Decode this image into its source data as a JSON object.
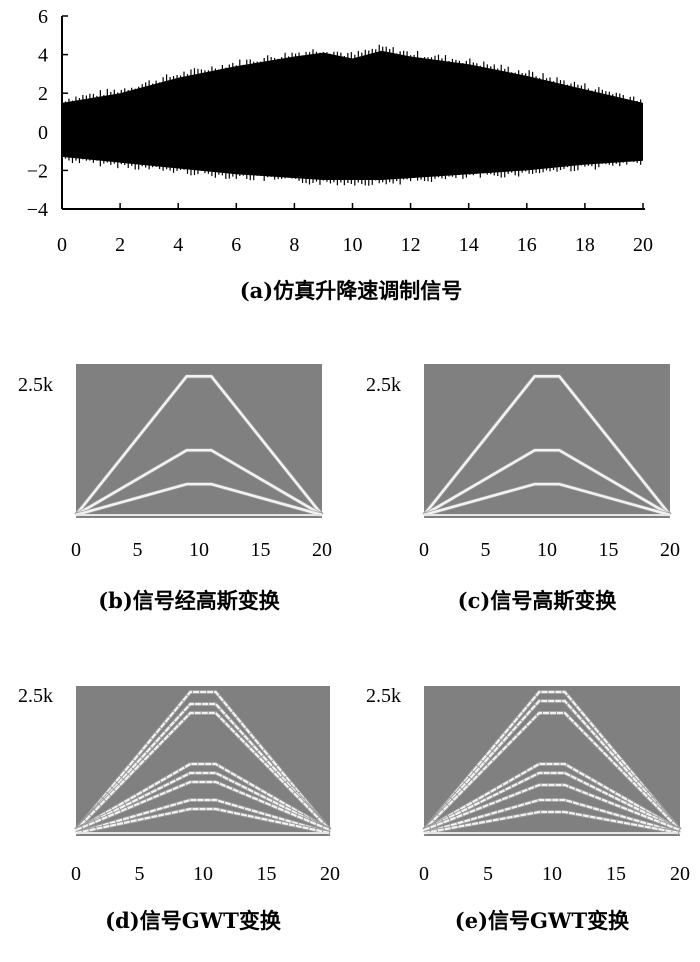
{
  "chart_data": [
    {
      "id": "a",
      "type": "area",
      "caption": "(a)仿真升降速调制信号",
      "xlim": [
        0,
        20
      ],
      "ylim": [
        -4,
        6
      ],
      "xticks": [
        "0",
        "2",
        "4",
        "6",
        "8",
        "10",
        "12",
        "14",
        "16",
        "18",
        "20"
      ],
      "yticks": [
        "6",
        "4",
        "2",
        "0",
        "−2",
        "−4"
      ],
      "series": [
        {
          "x": [
            0,
            2,
            4,
            6,
            8,
            9,
            10,
            11,
            12,
            14,
            16,
            18,
            20
          ],
          "upper": [
            1.5,
            2.0,
            2.8,
            3.4,
            3.9,
            4.1,
            3.8,
            4.2,
            3.9,
            3.5,
            2.9,
            2.2,
            1.5
          ],
          "lower": [
            -1.3,
            -1.6,
            -1.9,
            -2.2,
            -2.4,
            -2.5,
            -2.5,
            -2.5,
            -2.4,
            -2.2,
            -2.0,
            -1.7,
            -1.5
          ]
        }
      ]
    },
    {
      "id": "b",
      "type": "heatmap",
      "caption": "(b)信号经高斯变换",
      "ylabel_top": "2.5k",
      "xticks": [
        "0",
        "5",
        "10",
        "15",
        "20"
      ],
      "xlim": [
        0,
        20
      ],
      "ylim": [
        0,
        2.5
      ],
      "ridges": [
        {
          "x": [
            0,
            9,
            11,
            20
          ],
          "y": [
            0.05,
            2.3,
            2.3,
            0.05
          ]
        },
        {
          "x": [
            0,
            9,
            11,
            20
          ],
          "y": [
            0.05,
            1.1,
            1.1,
            0.05
          ]
        },
        {
          "x": [
            0,
            9,
            11,
            20
          ],
          "y": [
            0.05,
            0.55,
            0.55,
            0.05
          ]
        }
      ]
    },
    {
      "id": "c",
      "type": "heatmap",
      "caption": "(c)信号高斯变换",
      "ylabel_top": "2.5k",
      "xticks": [
        "0",
        "5",
        "10",
        "15",
        "20"
      ],
      "xlim": [
        0,
        20
      ],
      "ylim": [
        0,
        2.5
      ],
      "ridges": [
        {
          "x": [
            0,
            9,
            11,
            20
          ],
          "y": [
            0.05,
            2.3,
            2.3,
            0.05
          ]
        },
        {
          "x": [
            0,
            9,
            11,
            20
          ],
          "y": [
            0.05,
            1.1,
            1.1,
            0.05
          ]
        },
        {
          "x": [
            0,
            9,
            11,
            20
          ],
          "y": [
            0.05,
            0.55,
            0.55,
            0.05
          ]
        }
      ]
    },
    {
      "id": "d",
      "type": "heatmap",
      "caption": "(d)信号GWT变换",
      "ylabel_top": "2.5k",
      "xticks": [
        "0",
        "5",
        "10",
        "15",
        "20"
      ],
      "xlim": [
        0,
        20
      ],
      "ylim": [
        0,
        2.5
      ],
      "ridges": [
        {
          "x": [
            0,
            9,
            11,
            20
          ],
          "y": [
            0.1,
            2.4,
            2.4,
            0.1
          ]
        },
        {
          "x": [
            0,
            9,
            11,
            20
          ],
          "y": [
            0.1,
            2.2,
            2.2,
            0.1
          ]
        },
        {
          "x": [
            0,
            9,
            11,
            20
          ],
          "y": [
            0.1,
            2.05,
            2.05,
            0.1
          ]
        },
        {
          "x": [
            0,
            9,
            11,
            20
          ],
          "y": [
            0.1,
            1.2,
            1.2,
            0.1
          ]
        },
        {
          "x": [
            0,
            9,
            11,
            20
          ],
          "y": [
            0.1,
            1.05,
            1.05,
            0.1
          ]
        },
        {
          "x": [
            0,
            9,
            11,
            20
          ],
          "y": [
            0.1,
            0.9,
            0.9,
            0.1
          ]
        },
        {
          "x": [
            0,
            9,
            11,
            20
          ],
          "y": [
            0.05,
            0.6,
            0.6,
            0.05
          ]
        },
        {
          "x": [
            0,
            9,
            11,
            20
          ],
          "y": [
            0.05,
            0.45,
            0.45,
            0.05
          ]
        }
      ]
    },
    {
      "id": "e",
      "type": "heatmap",
      "caption": "(e)信号GWT变换",
      "ylabel_top": "2.5k",
      "xticks": [
        "0",
        "5",
        "10",
        "15",
        "20"
      ],
      "xlim": [
        0,
        20
      ],
      "ylim": [
        0,
        2.5
      ],
      "ridges": [
        {
          "x": [
            0,
            9,
            11,
            20
          ],
          "y": [
            0.1,
            2.4,
            2.4,
            0.1
          ]
        },
        {
          "x": [
            0,
            9,
            11,
            20
          ],
          "y": [
            0.1,
            2.25,
            2.25,
            0.1
          ]
        },
        {
          "x": [
            0,
            9,
            11,
            20
          ],
          "y": [
            0.1,
            2.05,
            2.05,
            0.1
          ]
        },
        {
          "x": [
            0,
            9,
            11,
            20
          ],
          "y": [
            0.1,
            1.2,
            1.2,
            0.1
          ]
        },
        {
          "x": [
            0,
            9,
            11,
            20
          ],
          "y": [
            0.1,
            1.05,
            1.05,
            0.1
          ]
        },
        {
          "x": [
            0,
            9,
            11,
            20
          ],
          "y": [
            0.1,
            0.85,
            0.85,
            0.1
          ]
        },
        {
          "x": [
            0,
            9,
            11,
            20
          ],
          "y": [
            0.05,
            0.6,
            0.6,
            0.05
          ]
        },
        {
          "x": [
            0,
            9,
            11,
            20
          ],
          "y": [
            0.05,
            0.4,
            0.4,
            0.05
          ]
        }
      ]
    }
  ]
}
